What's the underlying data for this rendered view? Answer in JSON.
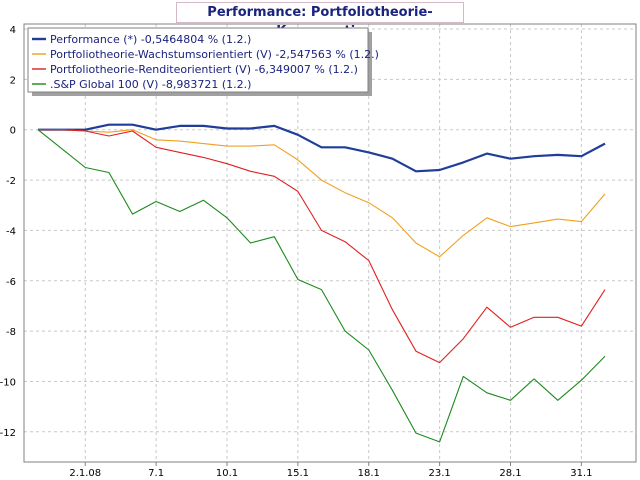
{
  "chart_data": {
    "type": "line",
    "title": "Performance: Portfoliotheorie-Konservativ",
    "x_tick_labels": [
      "2.1.08",
      "7.1",
      "10.1",
      "15.1",
      "18.1",
      "23.1",
      "28.1",
      "31.1"
    ],
    "y_ticks": [
      4,
      2,
      0,
      -2,
      -4,
      -6,
      -8,
      -10,
      -12
    ],
    "ylim": [
      -13.2,
      4.2
    ],
    "point_count": 25,
    "x_tick_index": [
      2,
      5,
      8,
      11,
      14,
      17,
      20,
      23
    ],
    "grid": true,
    "legend_position": "top-left",
    "series": [
      {
        "name": "Performance (*) -0,5464804 % (1.2.)",
        "color": "#1f3d99",
        "values": [
          0,
          0,
          0,
          0.2,
          0.2,
          0,
          0.15,
          0.15,
          0.05,
          0.05,
          0.15,
          -0.2,
          -0.7,
          -0.7,
          -0.9,
          -1.15,
          -1.65,
          -1.6,
          -1.3,
          -0.95,
          -1.15,
          -1.05,
          -1.0,
          -1.05,
          -0.55
        ]
      },
      {
        "name": "Portfoliotheorie-Wachstumsorientiert (V) -2,547563 % (1.2.)",
        "color": "#f0a020",
        "values": [
          0,
          0,
          -0.05,
          -0.1,
          0,
          -0.4,
          -0.45,
          -0.55,
          -0.65,
          -0.65,
          -0.6,
          -1.2,
          -2.0,
          -2.5,
          -2.9,
          -3.5,
          -4.5,
          -5.05,
          -4.2,
          -3.5,
          -3.85,
          -3.7,
          -3.55,
          -3.65,
          -2.55
        ]
      },
      {
        "name": "Portfoliotheorie-Renditeorientiert (V) -6,349007 % (1.2.)",
        "color": "#e02020",
        "values": [
          0,
          0,
          -0.05,
          -0.25,
          -0.05,
          -0.7,
          -0.9,
          -1.1,
          -1.35,
          -1.65,
          -1.85,
          -2.45,
          -4.0,
          -4.45,
          -5.2,
          -7.15,
          -8.8,
          -9.25,
          -8.3,
          -7.05,
          -7.85,
          -7.45,
          -7.45,
          -7.8,
          -6.35
        ]
      },
      {
        "name": ".S&P Global 100 (V) -8,983721 (1.2.)",
        "color": "#1c8a1c",
        "values": [
          0,
          -0.75,
          -1.5,
          -1.7,
          -3.35,
          -2.85,
          -3.25,
          -2.8,
          -3.5,
          -4.5,
          -4.25,
          -5.95,
          -6.35,
          -8.0,
          -8.75,
          -10.35,
          -12.05,
          -12.4,
          -9.8,
          -10.45,
          -10.75,
          -9.9,
          -10.75,
          -9.95,
          -9.0
        ]
      }
    ]
  }
}
